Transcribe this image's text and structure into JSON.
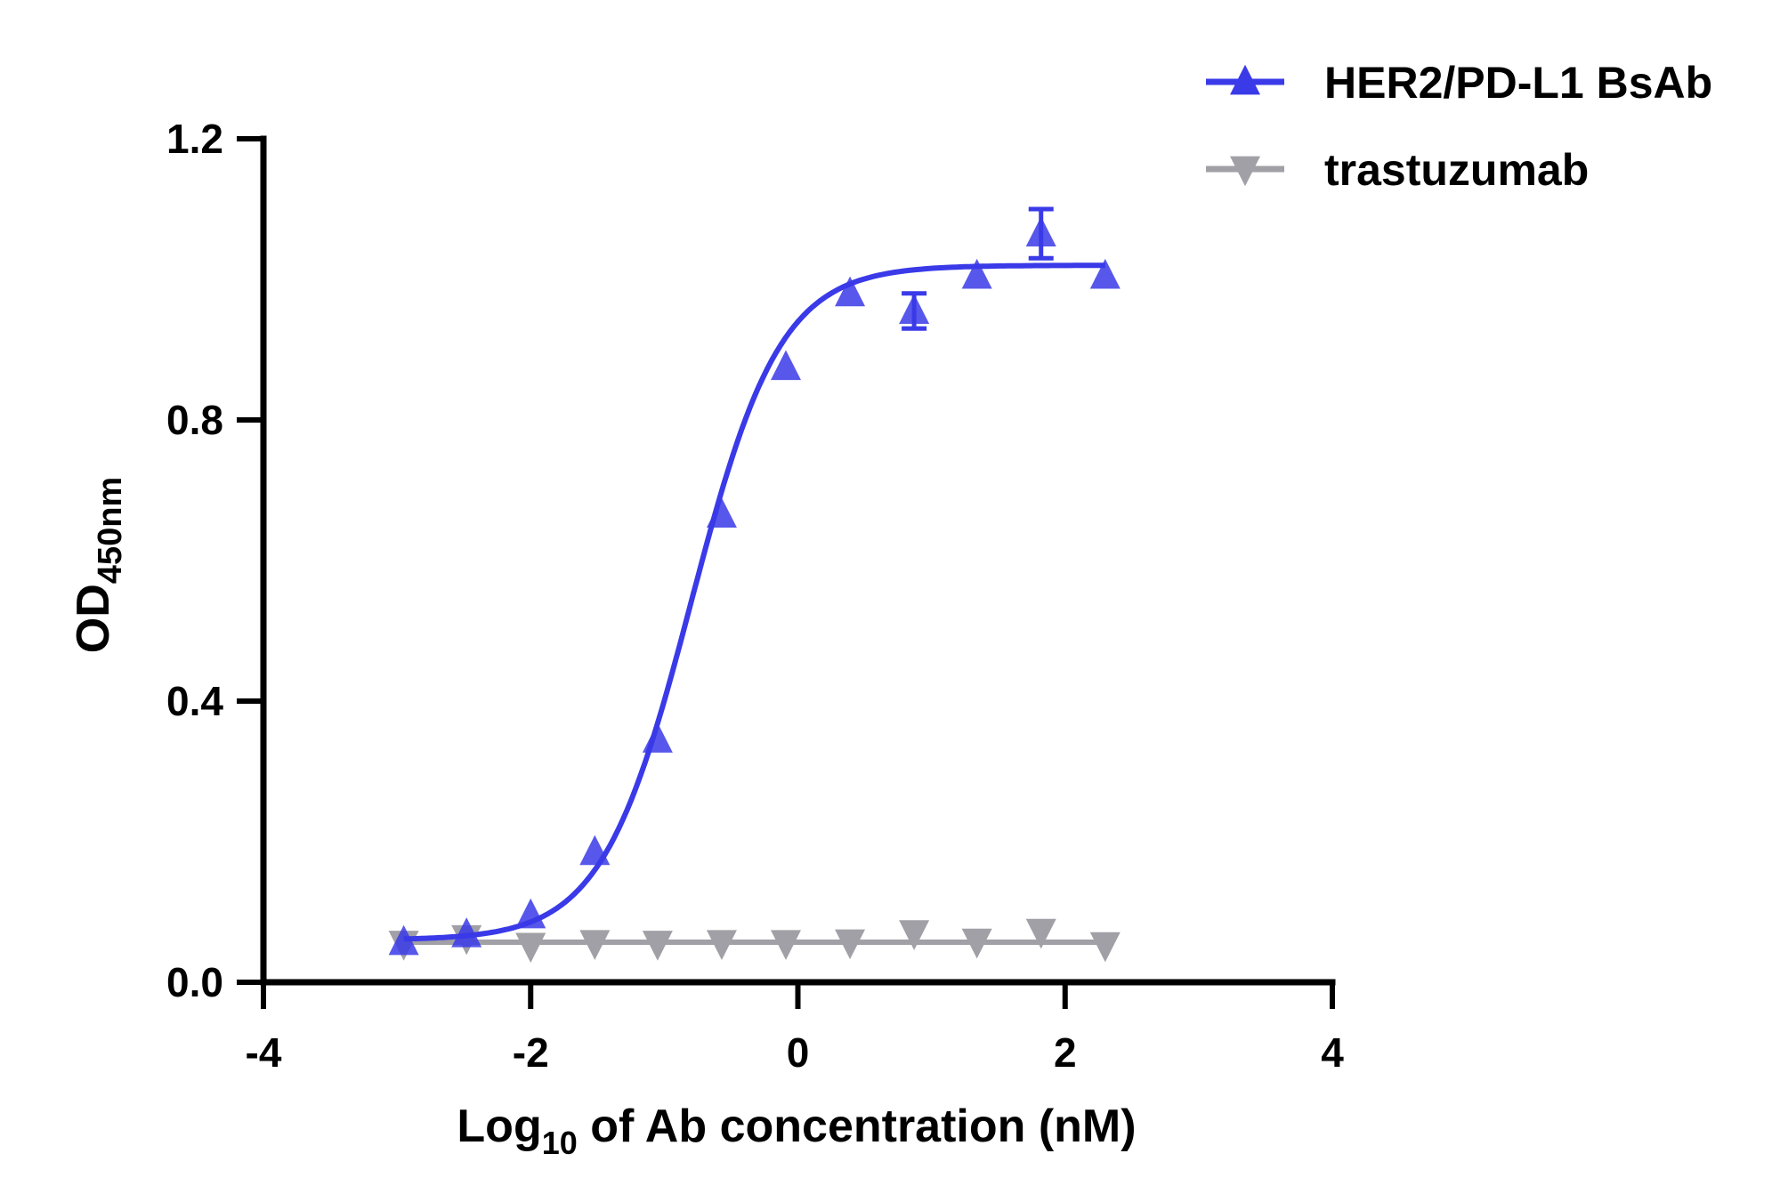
{
  "chart_data": {
    "type": "scatter",
    "title": "",
    "xlabel": {
      "prefix": "Log",
      "subscript": "10",
      "suffix": " of Ab concentration (nM)"
    },
    "ylabel": {
      "main": "OD",
      "subscript": "450nm"
    },
    "xlim": [
      -4,
      4
    ],
    "ylim": [
      0,
      1.2
    ],
    "xticks": [
      -4,
      -2,
      0,
      2,
      4
    ],
    "xtick_labels": [
      "-4",
      "-2",
      "0",
      "2",
      "4"
    ],
    "yticks": [
      0.0,
      0.4,
      0.8,
      1.2
    ],
    "ytick_labels": [
      "0.0",
      "0.4",
      "0.8",
      "1.2"
    ],
    "grid": false,
    "legend_position": "top-right",
    "series": [
      {
        "name": "HER2/PD-L1 BsAb",
        "color": "#3a3ae8",
        "marker": "triangle-up",
        "fit": "four-parameter-logistic",
        "x": [
          -2.95,
          -2.48,
          -2.0,
          -1.52,
          -1.05,
          -0.57,
          -0.09,
          0.39,
          0.87,
          1.34,
          1.82,
          2.3
        ],
        "y": [
          0.057,
          0.068,
          0.095,
          0.185,
          0.345,
          0.665,
          0.875,
          0.98,
          0.955,
          1.005,
          1.065,
          1.005
        ],
        "error": [
          0.0,
          0.0,
          0.0,
          0.0,
          0.0,
          0.0,
          0.0,
          0.0,
          0.025,
          0.0,
          0.035,
          0.0
        ],
        "fit_params": {
          "bottom": 0.06,
          "top": 1.02,
          "logEC50": -0.8,
          "hill": 1.3
        }
      },
      {
        "name": "trastuzumab",
        "color": "#a0a0a6",
        "marker": "triangle-down",
        "fit": "flat",
        "x": [
          -2.95,
          -2.48,
          -2.0,
          -1.52,
          -1.05,
          -0.57,
          -0.09,
          0.39,
          0.87,
          1.34,
          1.82,
          2.3
        ],
        "y": [
          0.055,
          0.063,
          0.052,
          0.056,
          0.055,
          0.056,
          0.056,
          0.057,
          0.07,
          0.058,
          0.072,
          0.053
        ],
        "fit_level": 0.057
      }
    ]
  }
}
